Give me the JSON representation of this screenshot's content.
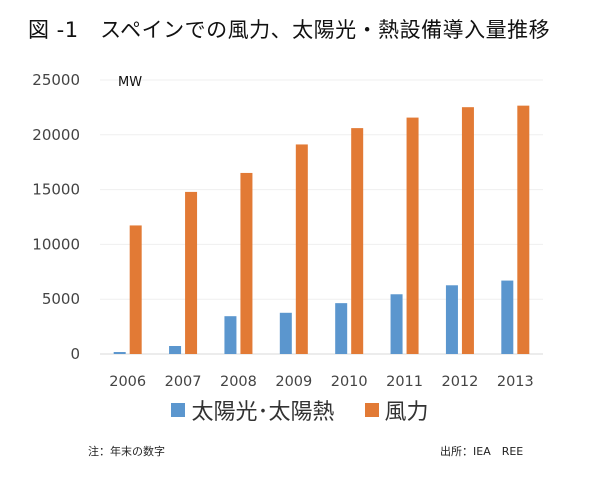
{
  "title": "図 -1　スペインでの風力、太陽光・熱設備導入量推移",
  "note": "注：年末の数字",
  "source": "出所：IEA　REE",
  "chart_data": {
    "type": "bar",
    "title": "図 -1　スペインでの風力、太陽光・熱設備導入量推移",
    "xlabel": "",
    "ylabel": "MW",
    "unit_label": "MW",
    "ylim": [
      0,
      25000
    ],
    "yticks": [
      0,
      5000,
      10000,
      15000,
      20000,
      25000
    ],
    "grid": true,
    "legend_position": "bottom",
    "categories": [
      "2006",
      "2007",
      "2008",
      "2009",
      "2010",
      "2011",
      "2012",
      "2013"
    ],
    "series": [
      {
        "name": "太陽光･太陽熱",
        "color": "#5B96CE",
        "values": [
          180,
          730,
          3450,
          3760,
          4640,
          5450,
          6270,
          6700
        ]
      },
      {
        "name": "風力",
        "color": "#E27A35",
        "values": [
          11730,
          14790,
          16520,
          19120,
          20610,
          21570,
          22520,
          22660
        ]
      }
    ]
  }
}
